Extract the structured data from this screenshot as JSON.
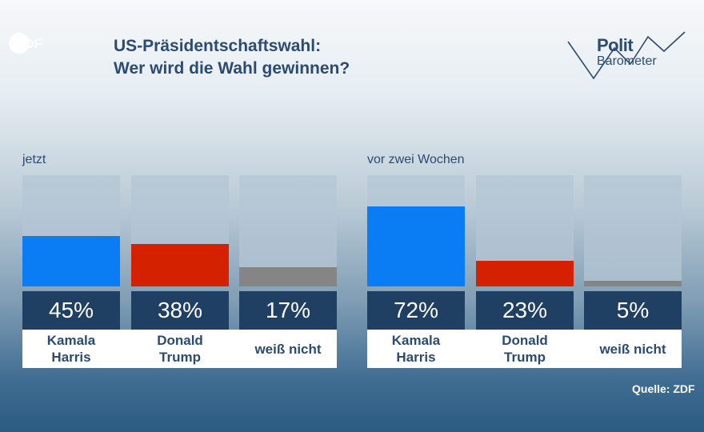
{
  "header": {
    "title_line1": "US-Präsidentschaftswahl:",
    "title_line2": "Wer wird die Wahl gewinnen?"
  },
  "logos": {
    "channel": "ZDF",
    "brand_line1": "Polit",
    "brand_line2": "Barometer"
  },
  "source": "Quelle: ZDF",
  "colors": {
    "harris": "#0a7df5",
    "trump": "#d42100",
    "undecided": "#858585"
  },
  "chart_data": [
    {
      "type": "bar",
      "group_label": "jetzt",
      "categories": [
        "Kamala Harris",
        "Donald Trump",
        "weiß nicht"
      ],
      "category_lines": [
        [
          "Kamala",
          "Harris"
        ],
        [
          "Donald",
          "Trump"
        ],
        [
          "weiß nicht"
        ]
      ],
      "values": [
        45,
        38,
        17
      ],
      "value_labels": [
        "45%",
        "38%",
        "17%"
      ],
      "ylim": [
        0,
        100
      ]
    },
    {
      "type": "bar",
      "group_label": "vor zwei Wochen",
      "categories": [
        "Kamala Harris",
        "Donald Trump",
        "weiß nicht"
      ],
      "category_lines": [
        [
          "Kamala",
          "Harris"
        ],
        [
          "Donald",
          "Trump"
        ],
        [
          "weiß nicht"
        ]
      ],
      "values": [
        72,
        23,
        5
      ],
      "value_labels": [
        "72%",
        "23%",
        "5%"
      ],
      "ylim": [
        0,
        100
      ]
    }
  ]
}
